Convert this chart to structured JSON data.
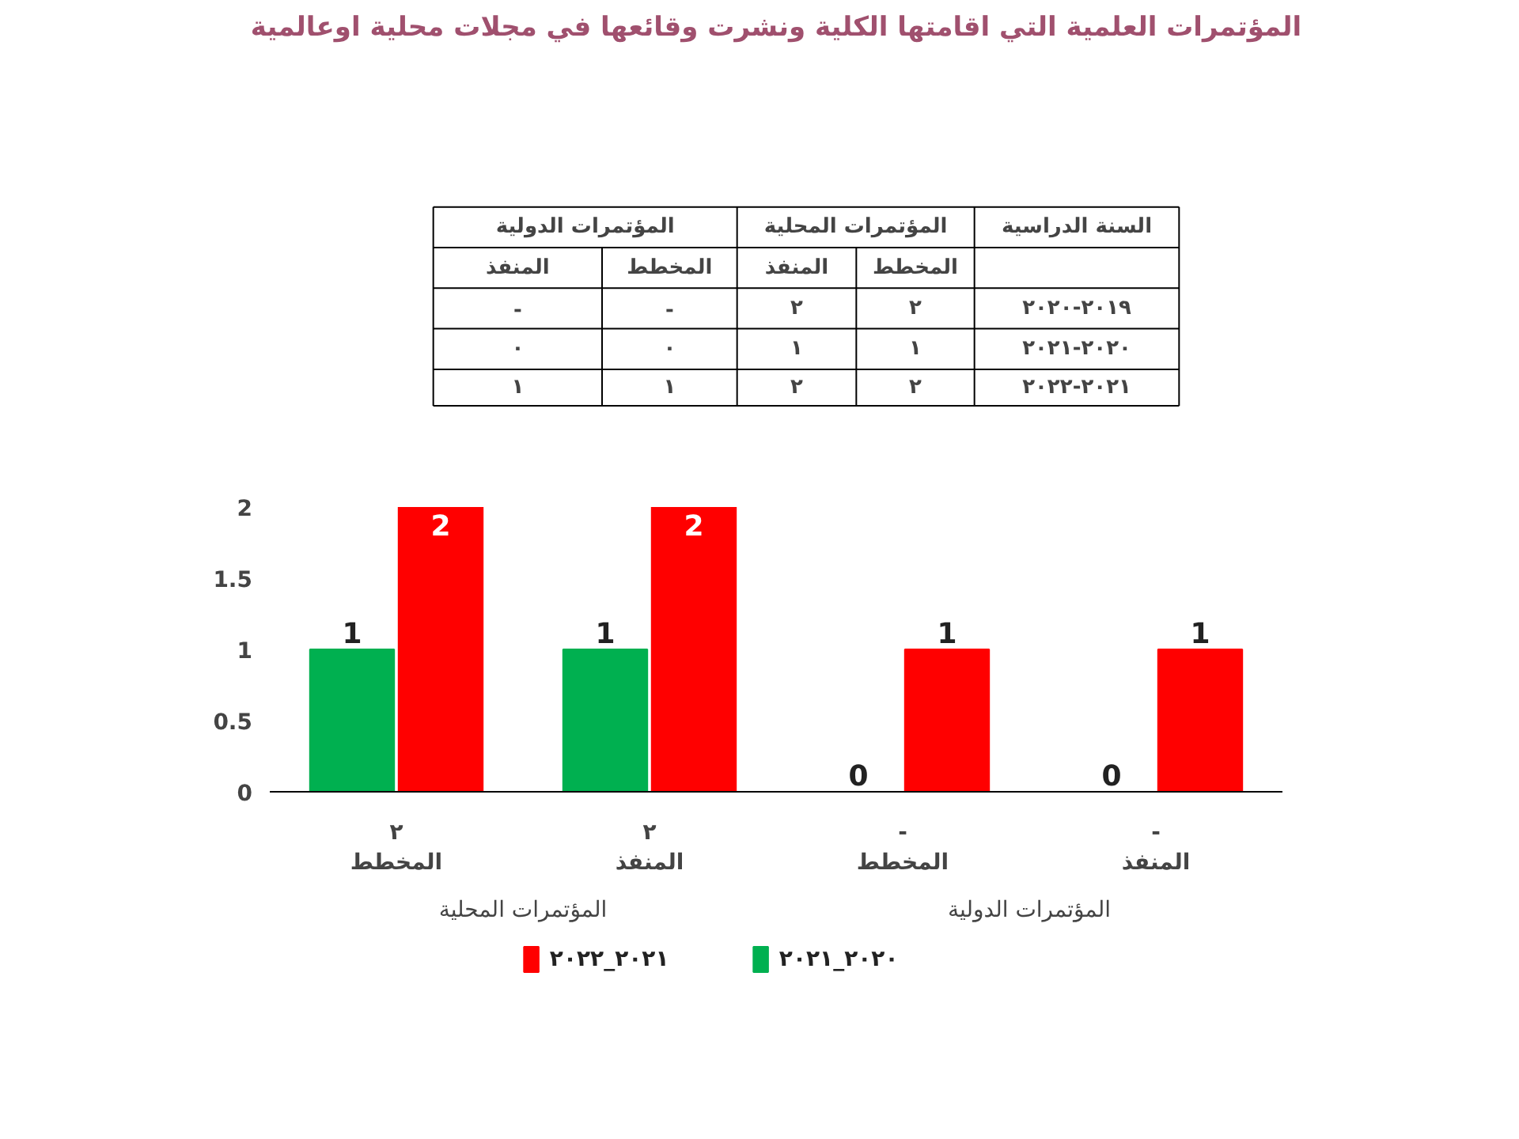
{
  "chart_data": {
    "type": "bar",
    "title": "المؤتمرات العلمية التي اقامتها الكلية ونشرت وقائعها في مجلات محلية اوعالمية",
    "categories": [
      "٢\nالمخطط",
      "٢\nالمنفذ",
      "-\nالمخطط",
      "-\nالمنفذ"
    ],
    "series": [
      {
        "name": "٢٠٢٠_٢٠٢١",
        "color": "#00b050",
        "values": [
          1,
          1,
          0,
          0
        ]
      },
      {
        "name": "٢٠٢١_٢٠٢٢",
        "color": "#ff0000",
        "values": [
          2,
          2,
          1,
          1
        ]
      }
    ],
    "ylim": [
      0,
      2
    ],
    "yticks": [
      0,
      0.5,
      1,
      1.5,
      2
    ],
    "grid": false,
    "legend": "bottom",
    "data_labels": true,
    "annotations": [
      "المؤتمرات المحلية",
      "المؤتمرات الدولية",
      "المؤتمرات الدولية",
      "المؤتمرات المحلية",
      "السنة الدراسية",
      "المنفذ",
      "المخطط",
      "المنفذ",
      "المخطط",
      "-",
      "-",
      "٢",
      "٢",
      "٢٠١٩-٢٠٢٠",
      "٠",
      "٠",
      "١",
      "١",
      "٢٠٢٠-٢٠٢١",
      "١",
      "١",
      "٢",
      "٢",
      "٢٠٢١-٢٠٢٢"
    ]
  }
}
